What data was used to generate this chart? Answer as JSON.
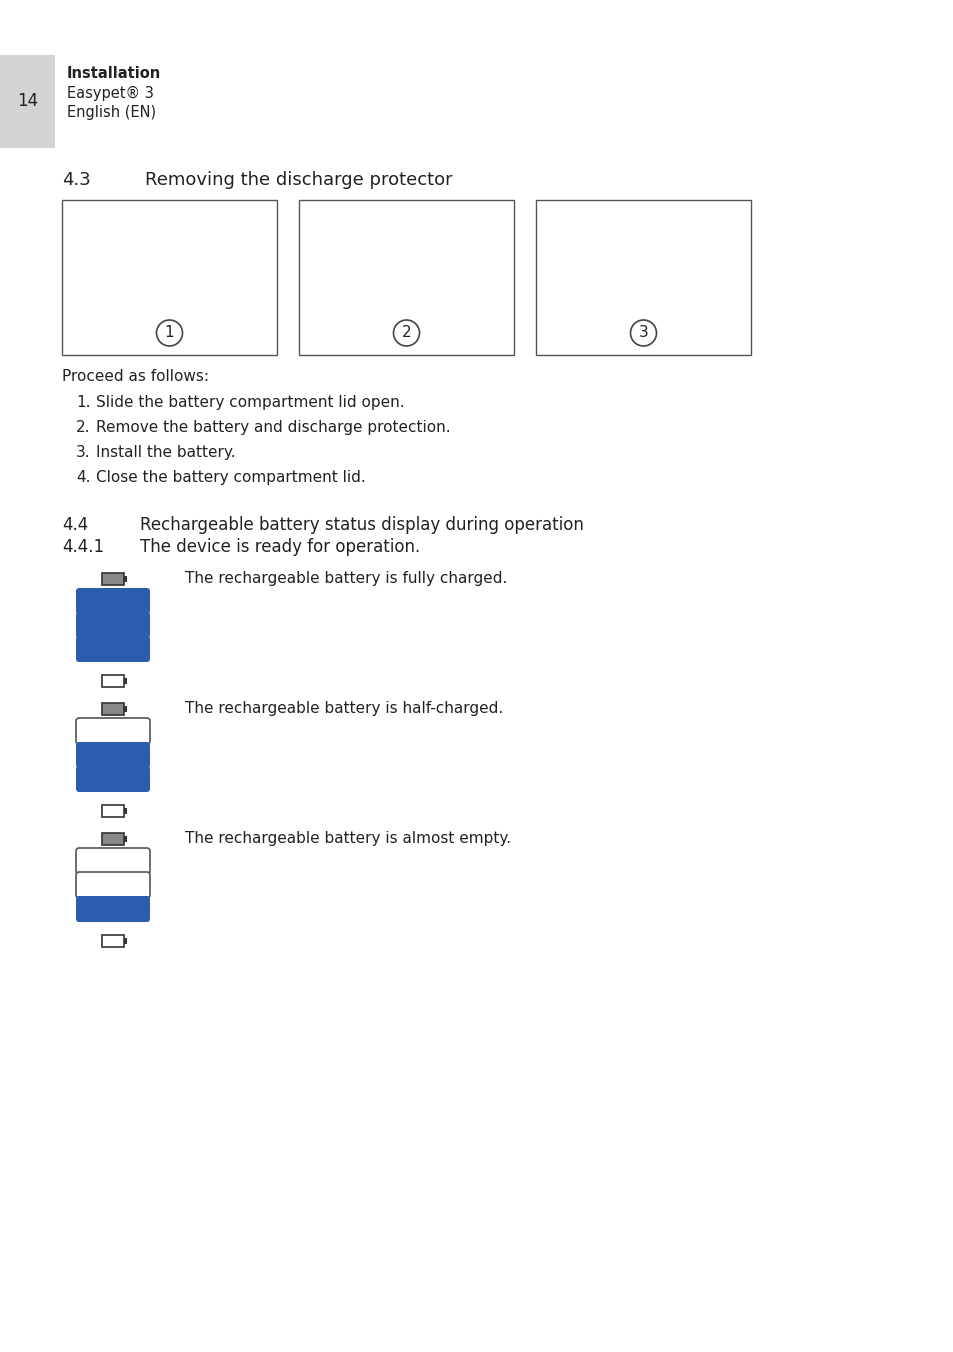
{
  "background_color": "#ffffff",
  "page_num": "14",
  "header_bg": "#d4d4d4",
  "header_bold": "Installation",
  "header_line2": "Easypet® 3",
  "header_line3": "English (EN)",
  "section_43": "4.3",
  "section_43_title": "Removing the discharge protector",
  "proceed_text": "Proceed as follows:",
  "steps": [
    "Slide the battery compartment lid open.",
    "Remove the battery and discharge protection.",
    "Install the battery.",
    "Close the battery compartment lid."
  ],
  "section_44": "4.4",
  "section_44_title": "Rechargeable battery status display during operation",
  "section_441": "4.4.1",
  "section_441_title": "The device is ready for operation.",
  "battery_groups": [
    {
      "label": "The rechargeable battery is fully charged.",
      "bars": [
        true,
        true,
        true
      ],
      "icon_gray": true
    },
    {
      "label": "The rechargeable battery is half-charged.",
      "bars": [
        false,
        true,
        true
      ],
      "icon_gray": true
    },
    {
      "label": "The rechargeable battery is almost empty.",
      "bars": [
        false,
        false,
        true
      ],
      "icon_gray": true
    }
  ],
  "text_color": "#222222",
  "blue_color": "#2b5cad",
  "bar_border_color": "#555555",
  "icon_gray": "#888888",
  "icon_dark": "#333333"
}
